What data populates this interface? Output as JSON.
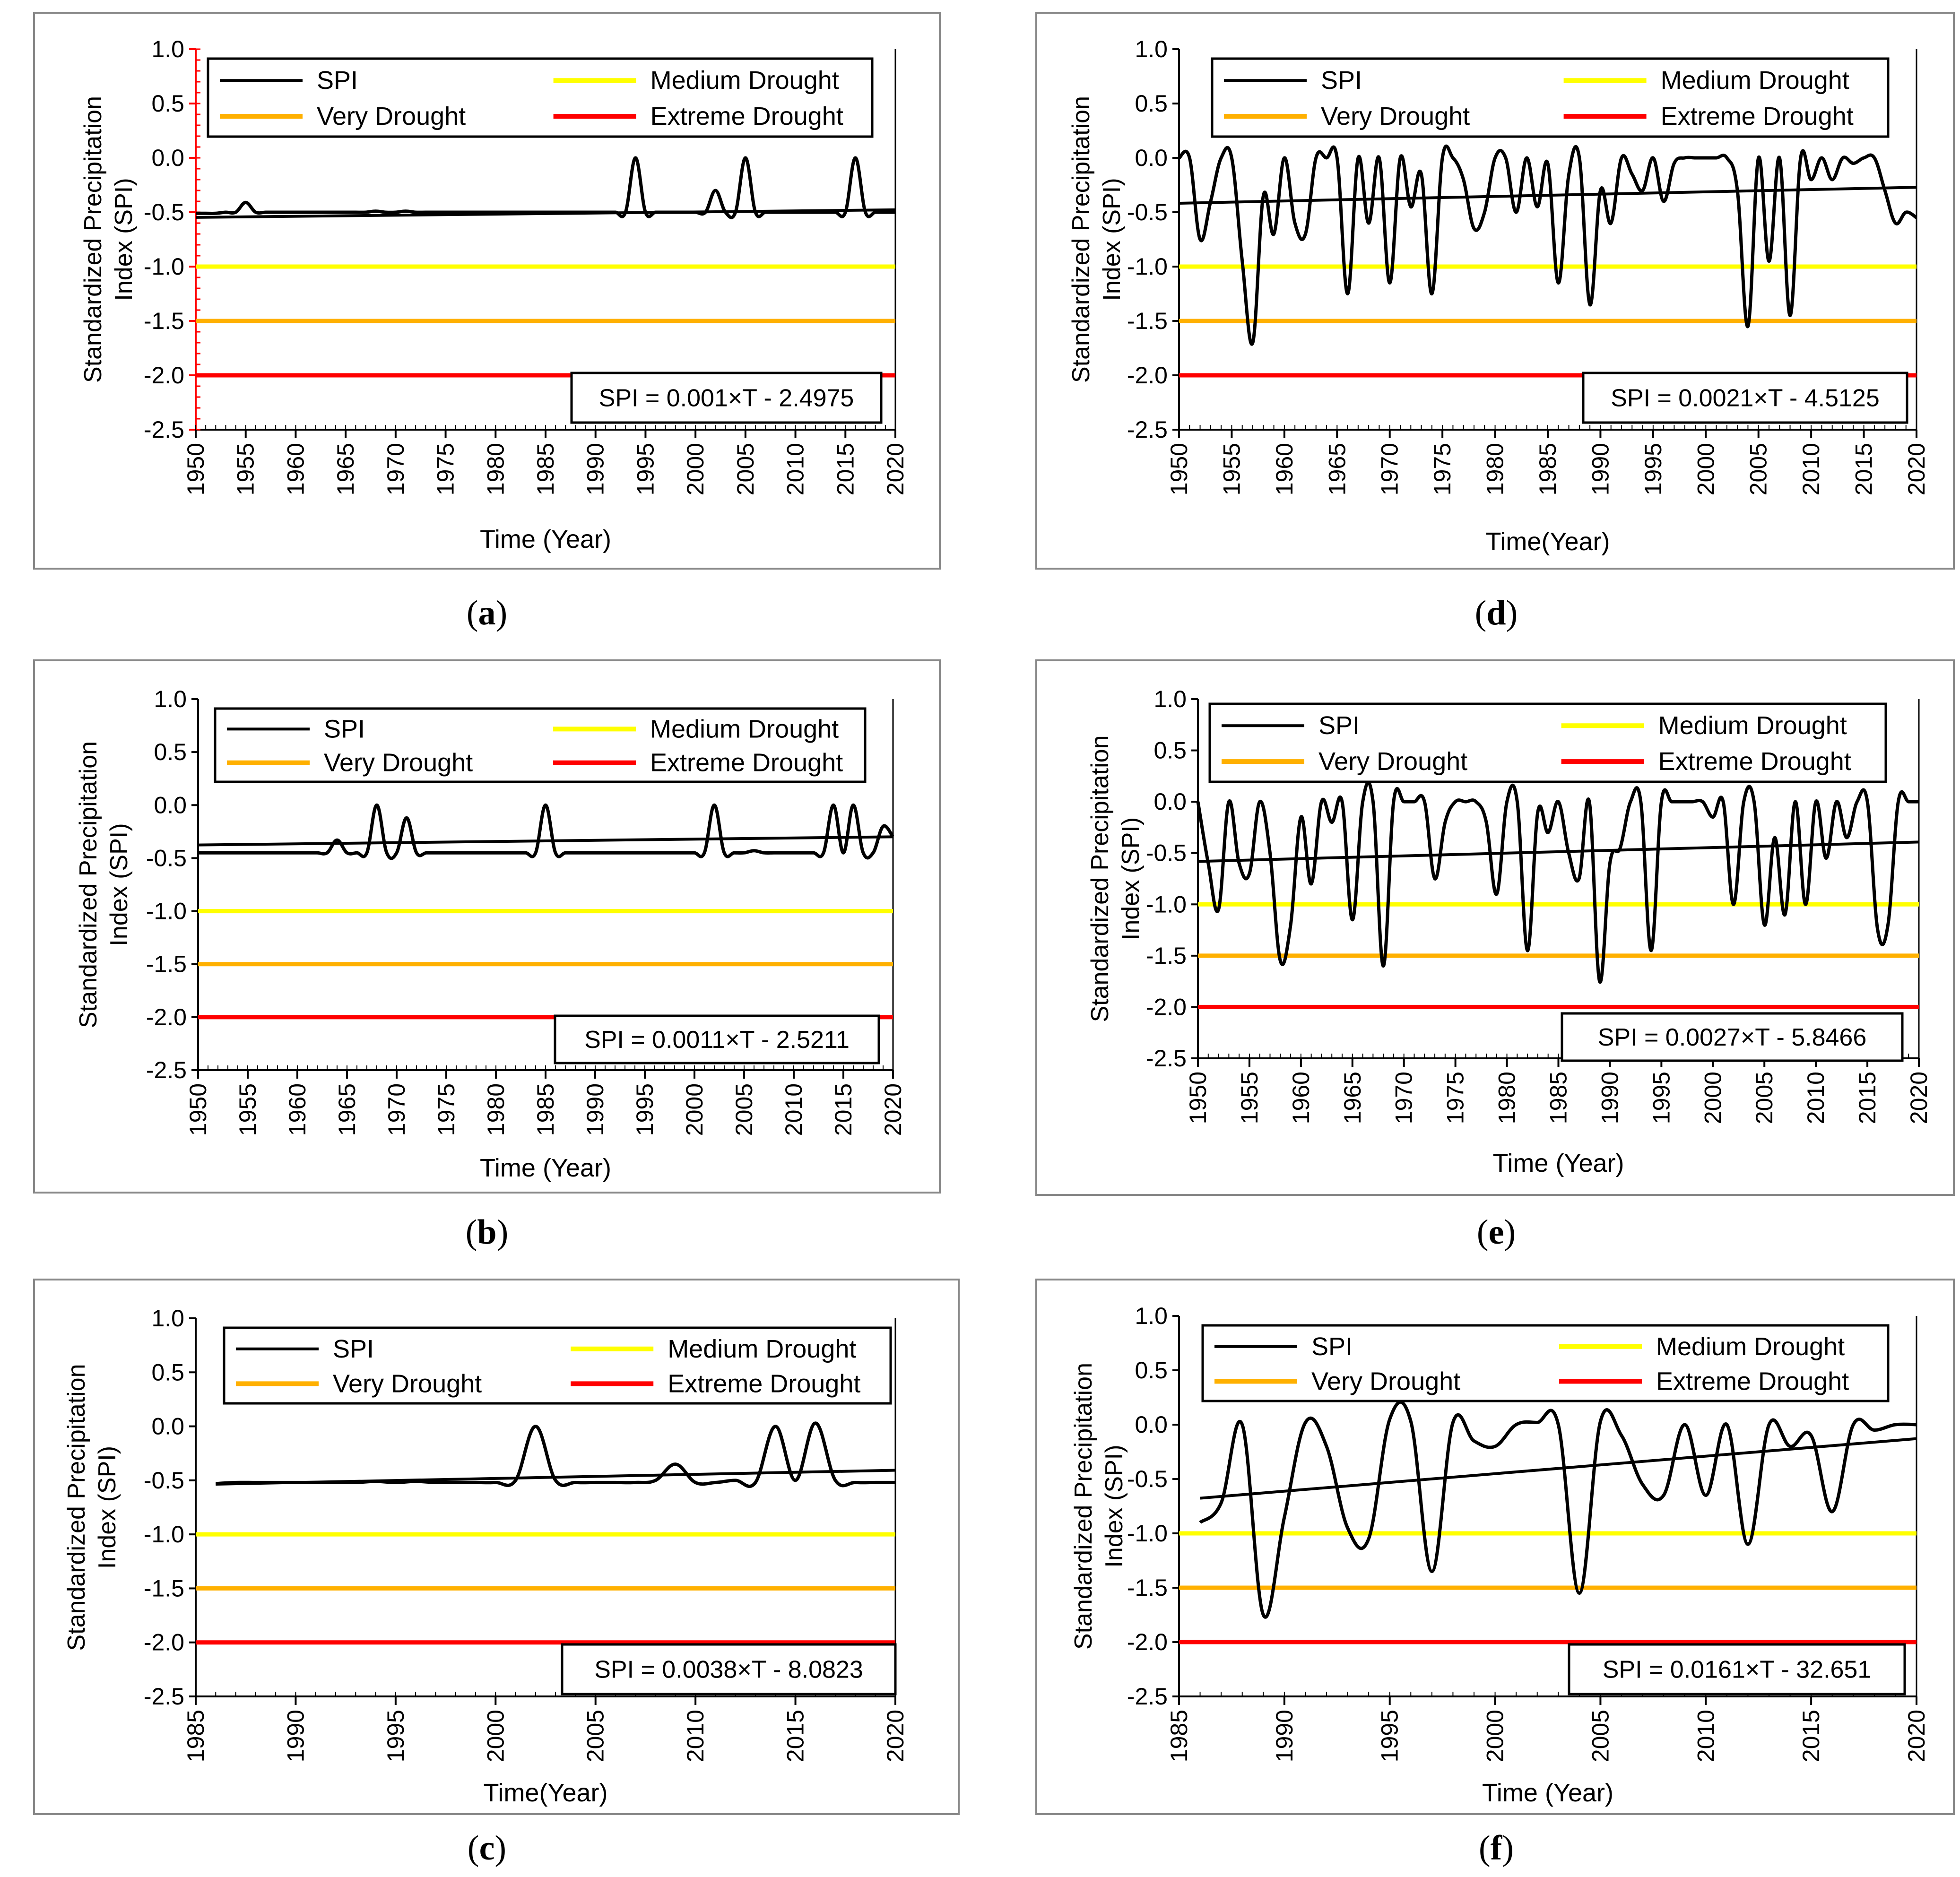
{
  "colors": {
    "spi": "#000000",
    "medium": "#ffff00",
    "very": "#ffb000",
    "extreme": "#ff0000",
    "trend": "#000000"
  },
  "legend": {
    "spi": "SPI",
    "medium": "Medium Drought",
    "very": "Very Drought",
    "extreme": "Extreme Drought"
  },
  "thresholds": {
    "medium": -1.0,
    "very": -1.5,
    "extreme": -2.0
  },
  "chart_data": [
    {
      "id": "a",
      "type": "line",
      "caption": "a",
      "ylabel": [
        "Standardized Precipitation",
        "Index (SPI)"
      ],
      "xlabel": "Time (Year)",
      "ylim": [
        -2.5,
        1.0
      ],
      "yticks": [
        "1.0",
        "0.5",
        "0.0",
        "-0.5",
        "-1.0",
        "-1.5",
        "-2.0",
        "-2.5"
      ],
      "xlim": [
        1950,
        2020
      ],
      "xticks": [
        "1950",
        "1955",
        "1960",
        "1965",
        "1970",
        "1975",
        "1980",
        "1985",
        "1990",
        "1995",
        "2000",
        "2005",
        "2010",
        "2015",
        "2020"
      ],
      "equation": "SPI = 0.001×T - 2.4975",
      "trend": {
        "slope": 0.001,
        "intercept": -2.4975
      },
      "series": {
        "name": "SPI",
        "x": [
          1950,
          1951,
          1952,
          1953,
          1954,
          1955,
          1956,
          1957,
          1958,
          1959,
          1960,
          1961,
          1962,
          1963,
          1964,
          1965,
          1966,
          1967,
          1968,
          1969,
          1970,
          1971,
          1972,
          1973,
          1974,
          1975,
          1976,
          1977,
          1978,
          1979,
          1980,
          1981,
          1982,
          1983,
          1984,
          1985,
          1986,
          1987,
          1988,
          1989,
          1990,
          1991,
          1992,
          1993,
          1994,
          1995,
          1996,
          1997,
          1998,
          1999,
          2000,
          2001,
          2002,
          2003,
          2004,
          2005,
          2006,
          2007,
          2008,
          2009,
          2010,
          2011,
          2012,
          2013,
          2014,
          2015,
          2016,
          2017,
          2018,
          2019,
          2020
        ],
        "values": [
          -0.51,
          -0.51,
          -0.51,
          -0.5,
          -0.5,
          -0.41,
          -0.5,
          -0.5,
          -0.5,
          -0.5,
          -0.5,
          -0.5,
          -0.5,
          -0.5,
          -0.5,
          -0.5,
          -0.5,
          -0.5,
          -0.49,
          -0.5,
          -0.5,
          -0.49,
          -0.5,
          -0.5,
          -0.5,
          -0.5,
          -0.5,
          -0.5,
          -0.5,
          -0.5,
          -0.5,
          -0.5,
          -0.5,
          -0.5,
          -0.5,
          -0.5,
          -0.5,
          -0.5,
          -0.5,
          -0.5,
          -0.5,
          -0.5,
          -0.5,
          -0.5,
          0.0,
          -0.5,
          -0.5,
          -0.5,
          -0.5,
          -0.5,
          -0.5,
          -0.5,
          -0.3,
          -0.5,
          -0.5,
          0.0,
          -0.5,
          -0.5,
          -0.5,
          -0.5,
          -0.5,
          -0.5,
          -0.5,
          -0.5,
          -0.5,
          -0.5,
          0.0,
          -0.5,
          -0.5,
          -0.5,
          -0.5
        ]
      }
    },
    {
      "id": "d",
      "type": "line",
      "caption": "d",
      "ylabel": [
        "Standardized Precipitation",
        "Index (SPI)"
      ],
      "xlabel": "Time(Year)",
      "ylim": [
        -2.5,
        1.0
      ],
      "yticks": [
        "1.0",
        "0.5",
        "0.0",
        "-0.5",
        "-1.0",
        "-1.5",
        "-2.0",
        "-2.5"
      ],
      "xlim": [
        1950,
        2020
      ],
      "xticks": [
        "1950",
        "1955",
        "1960",
        "1965",
        "1970",
        "1975",
        "1980",
        "1985",
        "1990",
        "1995",
        "2000",
        "2005",
        "2010",
        "2015",
        "2020"
      ],
      "equation": "SPI = 0.0021×T - 4.5125",
      "trend": {
        "slope": 0.0021,
        "intercept": -4.5125
      },
      "series": {
        "name": "SPI",
        "x": [
          1950,
          1951,
          1952,
          1953,
          1954,
          1955,
          1956,
          1957,
          1958,
          1959,
          1960,
          1961,
          1962,
          1963,
          1964,
          1965,
          1966,
          1967,
          1968,
          1969,
          1970,
          1971,
          1972,
          1973,
          1974,
          1975,
          1976,
          1977,
          1978,
          1979,
          1980,
          1981,
          1982,
          1983,
          1984,
          1985,
          1986,
          1987,
          1988,
          1989,
          1990,
          1991,
          1992,
          1993,
          1994,
          1995,
          1996,
          1997,
          1998,
          1999,
          2000,
          2001,
          2002,
          2003,
          2004,
          2005,
          2006,
          2007,
          2008,
          2009,
          2010,
          2011,
          2012,
          2013,
          2014,
          2015,
          2016,
          2017,
          2018,
          2019,
          2020
        ],
        "values": [
          0.0,
          0.0,
          -0.75,
          -0.4,
          0.0,
          0.0,
          -0.95,
          -1.7,
          -0.35,
          -0.7,
          0.0,
          -0.6,
          -0.7,
          0.0,
          0.0,
          0.0,
          -1.25,
          0.0,
          -0.6,
          0.0,
          -1.15,
          0.0,
          -0.45,
          -0.15,
          -1.25,
          0.0,
          0.0,
          -0.2,
          -0.65,
          -0.5,
          0.0,
          0.0,
          -0.5,
          0.0,
          -0.45,
          -0.05,
          -1.15,
          -0.15,
          0.0,
          -1.35,
          -0.3,
          -0.6,
          0.0,
          -0.15,
          -0.3,
          0.0,
          -0.4,
          -0.05,
          0.0,
          0.0,
          0.0,
          0.0,
          0.0,
          -0.3,
          -1.55,
          0.0,
          -0.95,
          0.0,
          -1.45,
          0.0,
          -0.2,
          0.0,
          -0.2,
          0.0,
          -0.05,
          0.0,
          0.0,
          -0.3,
          -0.6,
          -0.5,
          -0.55
        ]
      }
    },
    {
      "id": "b",
      "type": "line",
      "caption": "b",
      "ylabel": [
        "Standardized Precipitation",
        "Index (SPI)"
      ],
      "xlabel": "Time (Year)",
      "ylim": [
        -2.5,
        1.0
      ],
      "yticks": [
        "1.0",
        "0.5",
        "0.0",
        "-0.5",
        "-1.0",
        "-1.5",
        "-2.0",
        "-2.5"
      ],
      "xlim": [
        1950,
        2020
      ],
      "xticks": [
        "1950",
        "1955",
        "1960",
        "1965",
        "1970",
        "1975",
        "1980",
        "1985",
        "1990",
        "1995",
        "2000",
        "2005",
        "2010",
        "2015",
        "2020"
      ],
      "equation": "SPI = 0.0011×T - 2.5211",
      "trend": {
        "slope": 0.0011,
        "intercept": -2.5211
      },
      "series": {
        "name": "SPI",
        "x": [
          1950,
          1951,
          1952,
          1953,
          1954,
          1955,
          1956,
          1957,
          1958,
          1959,
          1960,
          1961,
          1962,
          1963,
          1964,
          1965,
          1966,
          1967,
          1968,
          1969,
          1970,
          1971,
          1972,
          1973,
          1974,
          1975,
          1976,
          1977,
          1978,
          1979,
          1980,
          1981,
          1982,
          1983,
          1984,
          1985,
          1986,
          1987,
          1988,
          1989,
          1990,
          1991,
          1992,
          1993,
          1994,
          1995,
          1996,
          1997,
          1998,
          1999,
          2000,
          2001,
          2002,
          2003,
          2004,
          2005,
          2006,
          2007,
          2008,
          2009,
          2010,
          2011,
          2012,
          2013,
          2014,
          2015,
          2016,
          2017,
          2018,
          2019,
          2020
        ],
        "values": [
          -0.45,
          -0.45,
          -0.45,
          -0.45,
          -0.45,
          -0.45,
          -0.45,
          -0.45,
          -0.45,
          -0.45,
          -0.45,
          -0.45,
          -0.45,
          -0.45,
          -0.33,
          -0.45,
          -0.45,
          -0.45,
          0.0,
          -0.45,
          -0.45,
          -0.12,
          -0.45,
          -0.45,
          -0.45,
          -0.45,
          -0.45,
          -0.45,
          -0.45,
          -0.45,
          -0.45,
          -0.45,
          -0.45,
          -0.45,
          -0.45,
          0.0,
          -0.45,
          -0.45,
          -0.45,
          -0.45,
          -0.45,
          -0.45,
          -0.45,
          -0.45,
          -0.45,
          -0.45,
          -0.45,
          -0.45,
          -0.45,
          -0.45,
          -0.45,
          -0.45,
          0.0,
          -0.45,
          -0.45,
          -0.45,
          -0.43,
          -0.45,
          -0.45,
          -0.45,
          -0.45,
          -0.45,
          -0.45,
          -0.45,
          0.0,
          -0.45,
          0.0,
          -0.45,
          -0.45,
          -0.2,
          -0.3
        ]
      }
    },
    {
      "id": "e",
      "type": "line",
      "caption": "e",
      "ylabel": [
        "Standardized Precipitation",
        "Index (SPI)"
      ],
      "xlabel": "Time (Year)",
      "ylim": [
        -2.5,
        1.0
      ],
      "yticks": [
        "1.0",
        "0.5",
        "0.0",
        "-0.5",
        "-1.0",
        "-1.5",
        "-2.0",
        "-2.5"
      ],
      "xlim": [
        1950,
        2020
      ],
      "xticks": [
        "1950",
        "1955",
        "1960",
        "1965",
        "1970",
        "1975",
        "1980",
        "1985",
        "1990",
        "1995",
        "2000",
        "2005",
        "2010",
        "2015",
        "2020"
      ],
      "equation": "SPI = 0.0027×T - 5.8466",
      "trend": {
        "slope": 0.0027,
        "intercept": -5.8466
      },
      "series": {
        "name": "SPI",
        "x": [
          1950,
          1951,
          1952,
          1953,
          1954,
          1955,
          1956,
          1957,
          1958,
          1959,
          1960,
          1961,
          1962,
          1963,
          1964,
          1965,
          1966,
          1967,
          1968,
          1969,
          1970,
          1971,
          1972,
          1973,
          1974,
          1975,
          1976,
          1977,
          1978,
          1979,
          1980,
          1981,
          1982,
          1983,
          1984,
          1985,
          1986,
          1987,
          1988,
          1989,
          1990,
          1991,
          1992,
          1993,
          1994,
          1995,
          1996,
          1997,
          1998,
          1999,
          2000,
          2001,
          2002,
          2003,
          2004,
          2005,
          2006,
          2007,
          2008,
          2009,
          2010,
          2011,
          2012,
          2013,
          2014,
          2015,
          2016,
          2017,
          2018,
          2019,
          2020
        ],
        "values": [
          0.0,
          -0.6,
          -1.05,
          0.0,
          -0.6,
          -0.7,
          0.0,
          -0.5,
          -1.55,
          -1.2,
          -0.15,
          -0.8,
          0.0,
          -0.2,
          0.0,
          -1.15,
          0.0,
          0.0,
          -1.6,
          0.0,
          0.0,
          0.0,
          0.0,
          -0.75,
          -0.2,
          0.0,
          0.0,
          0.0,
          -0.2,
          -0.9,
          0.0,
          0.0,
          -1.45,
          -0.1,
          -0.3,
          0.0,
          -0.5,
          -0.75,
          0.0,
          -1.75,
          -0.6,
          -0.45,
          0.0,
          0.0,
          -1.45,
          0.0,
          0.0,
          0.0,
          0.0,
          0.0,
          -0.15,
          0.0,
          -1.0,
          0.0,
          0.0,
          -1.2,
          -0.35,
          -1.1,
          0.0,
          -1.0,
          0.0,
          -0.55,
          0.0,
          -0.35,
          0.0,
          0.0,
          -1.25,
          -1.2,
          0.0,
          0.0,
          0.0
        ]
      }
    },
    {
      "id": "c",
      "type": "line",
      "caption": "c",
      "ylabel": [
        "Standardized Precipitation",
        "Index (SPI)"
      ],
      "xlabel": "Time(Year)",
      "ylim": [
        -2.5,
        1.0
      ],
      "yticks": [
        "1.0",
        "0.5",
        "0.0",
        "-0.5",
        "-1.0",
        "-1.5",
        "-2.0",
        "-2.5"
      ],
      "xlim": [
        1985,
        2020
      ],
      "xticks": [
        "1985",
        "1990",
        "1995",
        "2000",
        "2005",
        "2010",
        "2015",
        "2020"
      ],
      "equation": "SPI = 0.0038×T - 8.0823",
      "trend": {
        "slope": 0.0038,
        "intercept": -8.0823
      },
      "series": {
        "name": "SPI",
        "x": [
          1986,
          1987,
          1988,
          1989,
          1990,
          1991,
          1992,
          1993,
          1994,
          1995,
          1996,
          1997,
          1998,
          1999,
          2000,
          2001,
          2002,
          2003,
          2004,
          2005,
          2006,
          2007,
          2008,
          2009,
          2010,
          2011,
          2012,
          2013,
          2014,
          2015,
          2016,
          2017,
          2018,
          2019,
          2020
        ],
        "values": [
          -0.53,
          -0.52,
          -0.52,
          -0.52,
          -0.52,
          -0.52,
          -0.52,
          -0.52,
          -0.51,
          -0.52,
          -0.51,
          -0.52,
          -0.52,
          -0.52,
          -0.52,
          -0.5,
          0.0,
          -0.5,
          -0.52,
          -0.52,
          -0.52,
          -0.52,
          -0.5,
          -0.35,
          -0.52,
          -0.52,
          -0.5,
          -0.52,
          0.0,
          -0.5,
          0.03,
          -0.5,
          -0.52,
          -0.52,
          -0.52
        ]
      }
    },
    {
      "id": "f",
      "type": "line",
      "caption": "f",
      "ylabel": [
        "Standardized Precipitation",
        "Index (SPI)"
      ],
      "xlabel": "Time (Year)",
      "ylim": [
        -2.5,
        1.0
      ],
      "yticks": [
        "1.0",
        "0.5",
        "0.0",
        "-0.5",
        "-1.0",
        "-1.5",
        "-2.0",
        "-2.5"
      ],
      "xlim": [
        1985,
        2020
      ],
      "xticks": [
        "1985",
        "1990",
        "1995",
        "2000",
        "2005",
        "2010",
        "2015",
        "2020"
      ],
      "equation": "SPI = 0.0161×T - 32.651",
      "trend": {
        "slope": 0.0161,
        "intercept": -32.651
      },
      "series": {
        "name": "SPI",
        "x": [
          1986,
          1987,
          1988,
          1989,
          1990,
          1991,
          1992,
          1993,
          1994,
          1995,
          1996,
          1997,
          1998,
          1999,
          2000,
          2001,
          2002,
          2003,
          2004,
          2005,
          2006,
          2007,
          2008,
          2009,
          2010,
          2011,
          2012,
          2013,
          2014,
          2015,
          2016,
          2017,
          2018,
          2019,
          2020
        ],
        "values": [
          -0.9,
          -0.72,
          0.0,
          -1.75,
          -0.85,
          0.02,
          -0.2,
          -0.95,
          -1.05,
          0.05,
          0.03,
          -1.35,
          0.02,
          -0.15,
          -0.2,
          0.0,
          0.02,
          0.0,
          -1.55,
          0.03,
          -0.1,
          -0.55,
          -0.65,
          0.0,
          -0.65,
          0.0,
          -1.1,
          0.0,
          -0.2,
          -0.1,
          -0.8,
          0.0,
          -0.05,
          0.0,
          0.0
        ]
      }
    }
  ]
}
